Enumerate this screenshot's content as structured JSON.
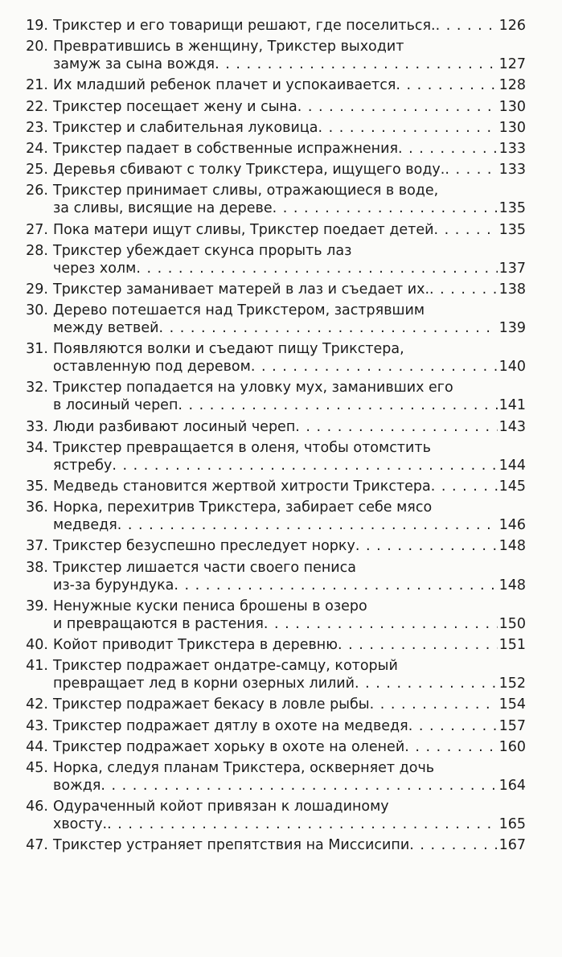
{
  "entries": [
    {
      "number": "19.",
      "lines": [
        "Трикстер и его товарищи решают, где поселиться."
      ],
      "page": 126
    },
    {
      "number": "20.",
      "lines": [
        "Превратившись в женщину, Трикстер выходит",
        "замуж за сына вождя"
      ],
      "page": 127
    },
    {
      "number": "21.",
      "lines": [
        "Их младший ребенок плачет и успокаивается"
      ],
      "page": 128
    },
    {
      "number": "22.",
      "lines": [
        "Трикстер посещает жену и сына"
      ],
      "page": 130
    },
    {
      "number": "23.",
      "lines": [
        "Трикстер и слабительная луковица"
      ],
      "page": 130
    },
    {
      "number": "24.",
      "lines": [
        "Трикстер падает в собственные испражнения"
      ],
      "page": 133
    },
    {
      "number": "25.",
      "lines": [
        "Деревья сбивают с толку Трикстера, ищущего воду."
      ],
      "page": 133
    },
    {
      "number": "26.",
      "lines": [
        "Трикстер принимает сливы, отражающиеся в воде,",
        "за сливы, висящие на дереве"
      ],
      "page": 135
    },
    {
      "number": "27.",
      "lines": [
        "Пока матери ищут сливы, Трикстер поедает детей"
      ],
      "page": 135
    },
    {
      "number": "28.",
      "lines": [
        "Трикстер убеждает скунса прорыть лаз",
        "через холм"
      ],
      "page": 137
    },
    {
      "number": "29.",
      "lines": [
        "Трикстер заманивает матерей в лаз и съедает их."
      ],
      "page": 138
    },
    {
      "number": "30.",
      "lines": [
        "Дерево потешается над Трикстером, застрявшим",
        "между ветвей"
      ],
      "page": 139
    },
    {
      "number": "31.",
      "lines": [
        "Появляются волки и съедают пищу Трикстера,",
        "оставленную под деревом"
      ],
      "page": 140
    },
    {
      "number": "32.",
      "lines": [
        "Трикстер попадается на уловку мух, заманивших его",
        "в лосиный череп"
      ],
      "page": 141
    },
    {
      "number": "33.",
      "lines": [
        "Люди разбивают лосиный череп"
      ],
      "page": 143
    },
    {
      "number": "34.",
      "lines": [
        "Трикстер превращается в оленя, чтобы отомстить",
        "ястребу"
      ],
      "page": 144
    },
    {
      "number": "35.",
      "lines": [
        "Медведь становится жертвой хитрости Трикстера"
      ],
      "page": 145
    },
    {
      "number": "36.",
      "lines": [
        "Норка, перехитрив Трикстера, забирает себе мясо",
        "медведя"
      ],
      "page": 146
    },
    {
      "number": "37.",
      "lines": [
        "Трикстер безуспешно преследует норку"
      ],
      "page": 148
    },
    {
      "number": "38.",
      "lines": [
        "Трикстер лишается части своего пениса",
        "из-за бурундука"
      ],
      "page": 148
    },
    {
      "number": "39.",
      "lines": [
        "Ненужные куски пениса брошены в озеро",
        "и превращаются в растения"
      ],
      "page": 150
    },
    {
      "number": "40.",
      "lines": [
        "Койот приводит Трикстера в деревню"
      ],
      "page": 151
    },
    {
      "number": "41.",
      "lines": [
        "Трикстер подражает ондатре-самцу, который",
        "превращает лед в корни озерных лилий"
      ],
      "page": 152
    },
    {
      "number": "42.",
      "lines": [
        "Трикстер подражает бекасу в ловле рыбы"
      ],
      "page": 154
    },
    {
      "number": "43.",
      "lines": [
        "Трикстер подражает дятлу в охоте на медведя"
      ],
      "page": 157
    },
    {
      "number": "44.",
      "lines": [
        "Трикстер подражает хорьку в охоте на оленей"
      ],
      "page": 160
    },
    {
      "number": "45.",
      "lines": [
        "Норка, следуя планам Трикстера, оскверняет дочь",
        "вождя"
      ],
      "page": 164
    },
    {
      "number": "46.",
      "lines": [
        "Одураченный койот привязан к лошадиному",
        "хвосту."
      ],
      "page": 165
    },
    {
      "number": "47.",
      "lines": [
        "Трикстер устраняет препятствия на Миссисипи"
      ],
      "page": 167
    }
  ]
}
